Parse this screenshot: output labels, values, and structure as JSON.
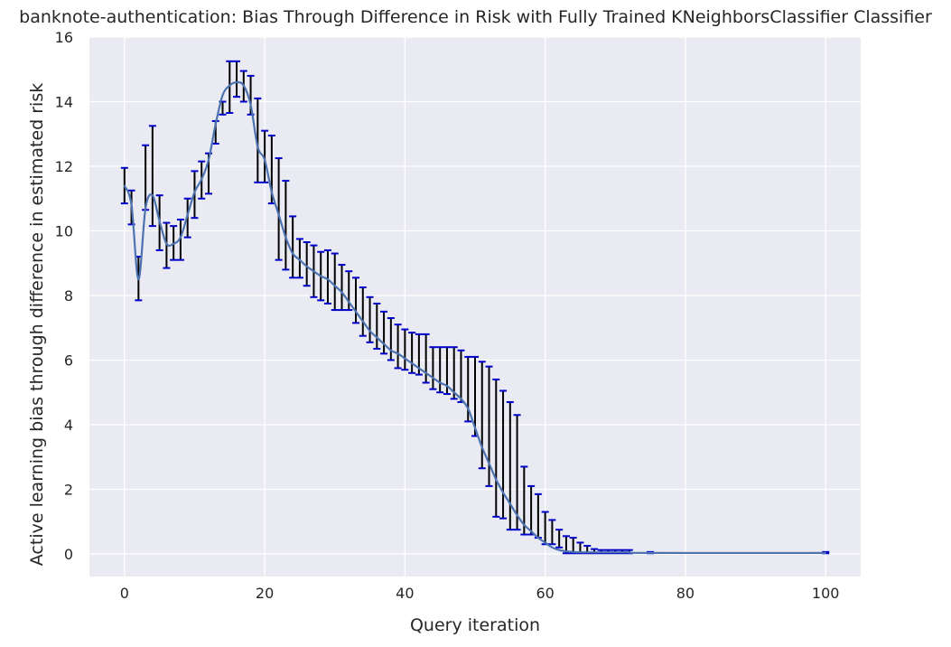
{
  "chart_data": {
    "type": "line",
    "title": "banknote-authentication: Bias Through Difference in Risk with Fully Trained KNeighborsClassifier Classifier",
    "xlabel": "Query iteration",
    "ylabel": "Active learning bias through difference in estimated risk",
    "xlim": [
      -5,
      105
    ],
    "ylim": [
      -0.7,
      16
    ],
    "xticks": [
      0,
      20,
      40,
      60,
      80,
      100
    ],
    "yticks": [
      0,
      2,
      4,
      6,
      8,
      10,
      12,
      14,
      16
    ],
    "grid": true,
    "colors": {
      "background": "#eaeaf2",
      "grid": "#ffffff",
      "line": "#4c72b0",
      "errorbar": "#000000",
      "cap": "#0000cc"
    },
    "series": [
      {
        "name": "bias",
        "x": [
          0,
          1,
          2,
          3,
          4,
          5,
          6,
          7,
          8,
          9,
          10,
          11,
          12,
          13,
          14,
          15,
          16,
          17,
          18,
          19,
          20,
          21,
          22,
          23,
          24,
          25,
          26,
          27,
          28,
          29,
          30,
          31,
          32,
          33,
          34,
          35,
          36,
          37,
          38,
          39,
          40,
          41,
          42,
          43,
          44,
          45,
          46,
          47,
          48,
          49,
          50,
          51,
          52,
          53,
          54,
          55,
          56,
          57,
          58,
          59,
          60,
          61,
          62,
          63,
          64,
          65,
          66,
          67,
          68,
          69,
          70,
          71,
          72,
          75,
          100
        ],
        "y": [
          11.4,
          10.8,
          8.5,
          10.7,
          11.1,
          10.3,
          9.6,
          9.6,
          9.8,
          10.5,
          11.2,
          11.6,
          12.2,
          13.3,
          14.2,
          14.5,
          14.6,
          14.5,
          13.9,
          12.6,
          12.2,
          11.2,
          10.5,
          9.8,
          9.3,
          9.1,
          8.9,
          8.75,
          8.6,
          8.5,
          8.3,
          8.1,
          7.8,
          7.5,
          7.2,
          6.9,
          6.7,
          6.5,
          6.3,
          6.2,
          6.05,
          5.9,
          5.75,
          5.6,
          5.45,
          5.3,
          5.2,
          5.0,
          4.8,
          4.5,
          3.9,
          3.3,
          2.8,
          2.3,
          1.9,
          1.55,
          1.2,
          0.9,
          0.7,
          0.5,
          0.35,
          0.2,
          0.12,
          0.08,
          0.06,
          0.05,
          0.05,
          0.05,
          0.05,
          0.05,
          0.05,
          0.05,
          0.05,
          0.03,
          0.03
        ],
        "err_low": [
          10.85,
          10.2,
          7.85,
          10.65,
          10.15,
          9.4,
          8.85,
          9.1,
          9.1,
          9.8,
          10.4,
          11.0,
          11.15,
          12.7,
          13.6,
          13.65,
          14.15,
          14.0,
          13.6,
          11.5,
          11.5,
          10.85,
          9.1,
          8.8,
          8.55,
          8.55,
          8.3,
          7.95,
          7.85,
          7.75,
          7.55,
          7.55,
          7.55,
          7.15,
          6.75,
          6.55,
          6.35,
          6.2,
          6.0,
          5.75,
          5.7,
          5.6,
          5.55,
          5.3,
          5.1,
          5.0,
          4.95,
          4.8,
          4.7,
          4.1,
          3.65,
          2.65,
          2.1,
          1.15,
          1.1,
          0.75,
          0.75,
          0.6,
          0.6,
          0.5,
          0.3,
          0.3,
          0.2,
          0.02,
          0.02,
          0.02,
          0.02,
          0.02,
          0.02,
          0.02,
          0.02,
          0.02,
          0.02,
          0.02,
          0.02
        ],
        "err_high": [
          11.95,
          11.25,
          9.2,
          12.65,
          13.25,
          11.1,
          10.25,
          10.15,
          10.35,
          11.0,
          11.85,
          12.15,
          12.4,
          13.4,
          14.0,
          15.25,
          15.25,
          14.95,
          14.8,
          14.1,
          13.1,
          12.95,
          12.25,
          11.55,
          10.45,
          9.75,
          9.65,
          9.55,
          9.35,
          9.4,
          9.3,
          8.95,
          8.75,
          8.55,
          8.25,
          7.95,
          7.75,
          7.5,
          7.3,
          7.1,
          6.95,
          6.85,
          6.8,
          6.8,
          6.4,
          6.4,
          6.4,
          6.4,
          6.3,
          6.1,
          6.1,
          5.95,
          5.8,
          5.4,
          5.05,
          4.7,
          4.3,
          2.7,
          2.1,
          1.85,
          1.3,
          1.05,
          0.75,
          0.55,
          0.5,
          0.35,
          0.25,
          0.15,
          0.12,
          0.12,
          0.12,
          0.12,
          0.12,
          0.06,
          0.06
        ]
      }
    ]
  }
}
